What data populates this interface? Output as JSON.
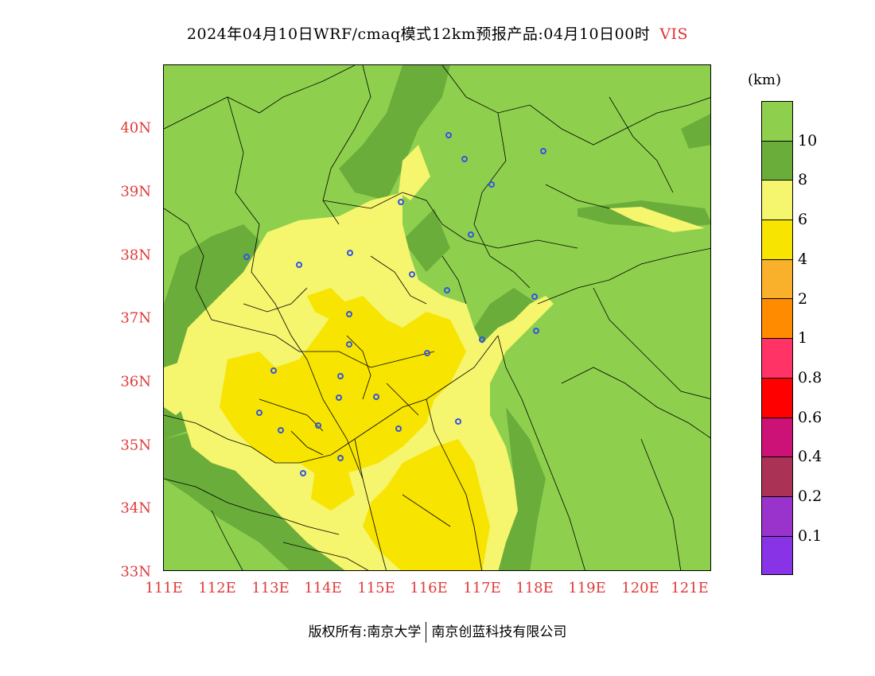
{
  "title": {
    "text": "2024年04月10日WRF/cmaq模式12km预报产品:04月10日00时",
    "variable": "VIS"
  },
  "lat_labels": [
    "40N",
    "39N",
    "38N",
    "37N",
    "36N",
    "35N",
    "34N",
    "33N"
  ],
  "lon_labels": [
    "111E",
    "112E",
    "113E",
    "114E",
    "115E",
    "116E",
    "117E",
    "118E",
    "119E",
    "120E",
    "121E"
  ],
  "legend": {
    "unit": "(km)",
    "labels": [
      "10",
      "8",
      "6",
      "4",
      "2",
      "1",
      "0.8",
      "0.6",
      "0.4",
      "0.2",
      "0.1"
    ],
    "colors": [
      "#8ed04e",
      "#6aad3a",
      "#f5f56e",
      "#f7e400",
      "#f9b12c",
      "#ff8c00",
      "#ff3366",
      "#ff0000",
      "#cc1177",
      "#aa3355",
      "#9933cc",
      "#8833e6"
    ]
  },
  "map_colors": {
    "gt10": "#8ed04e",
    "8to10": "#6aad3a",
    "6to8": "#f5f56e",
    "4to6": "#f7e400",
    "city_marker": "#3355dd",
    "boundary": "#000000"
  },
  "footer": {
    "left": "版权所有:南京大学",
    "right": "南京创蓝科技有限公司"
  }
}
